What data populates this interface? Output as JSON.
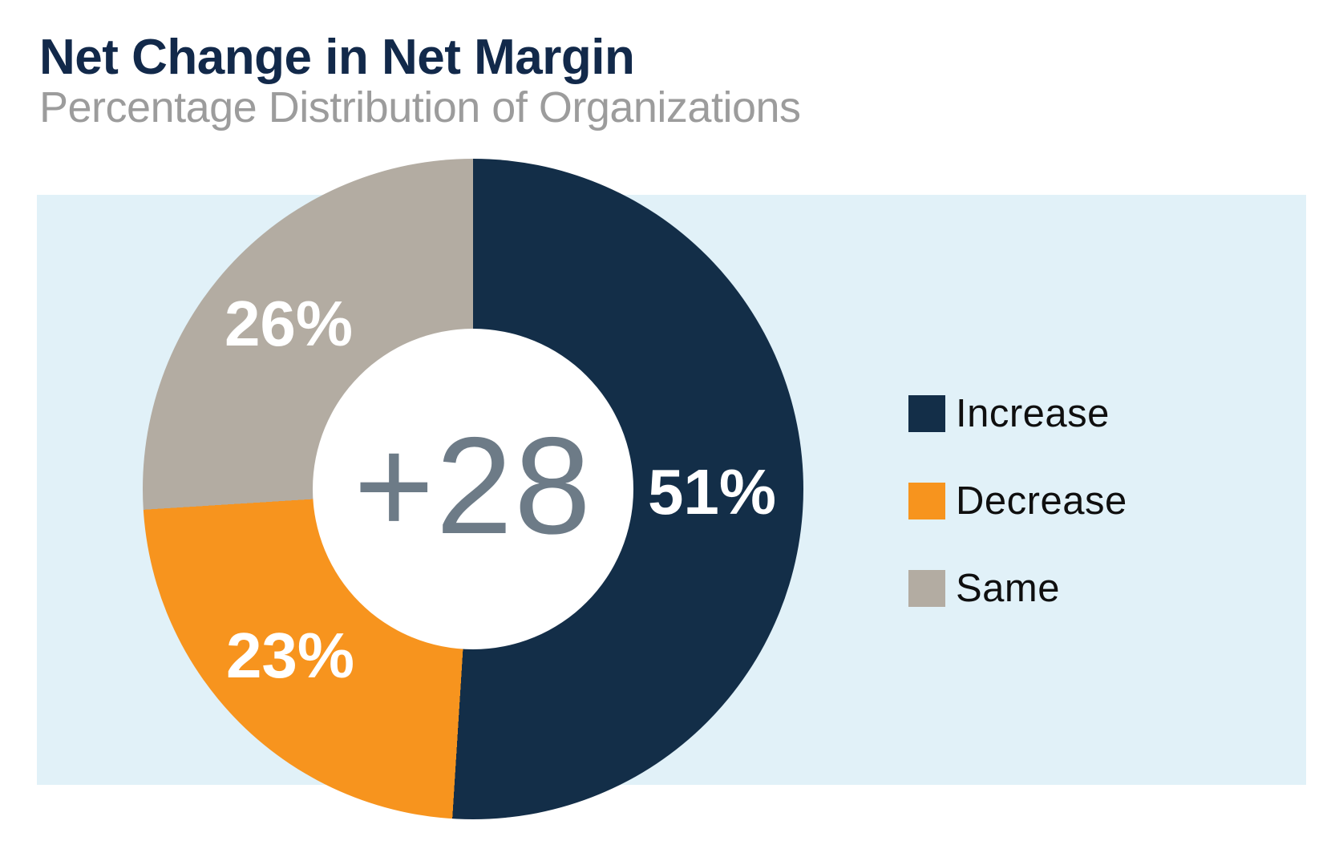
{
  "header": {
    "title": "Net Change in Net Margin",
    "subtitle": "Percentage Distribution of Organizations"
  },
  "chart_data": {
    "type": "pie",
    "variant": "donut",
    "title": "Net Change in Net Margin",
    "subtitle": "Percentage Distribution of Organizations",
    "center_label": "+28",
    "start_angle_deg": 0,
    "direction": "clockwise",
    "legend_position": "right",
    "segments": [
      {
        "name": "Increase",
        "value": 51,
        "label": "51%",
        "color": "#132e48"
      },
      {
        "name": "Decrease",
        "value": 23,
        "label": "23%",
        "color": "#f7941e"
      },
      {
        "name": "Same",
        "value": 26,
        "label": "26%",
        "color": "#b3aca2"
      }
    ],
    "colors": {
      "background_band": "#e1f1f8",
      "center_text": "#6d7b87",
      "title_text": "#12294a",
      "subtitle_text": "#9c9c9c",
      "segment_label_text": "#ffffff"
    }
  },
  "legend": {
    "items": [
      {
        "label": "Increase"
      },
      {
        "label": "Decrease"
      },
      {
        "label": "Same"
      }
    ]
  }
}
